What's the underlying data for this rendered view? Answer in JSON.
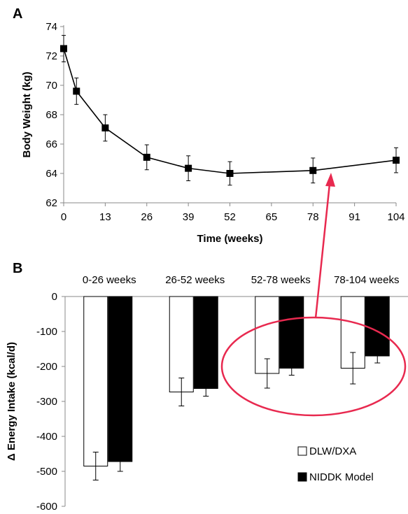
{
  "chart_data": [
    {
      "panel_label": "A",
      "type": "line",
      "xlabel": "Time (weeks)",
      "ylabel": "Body Weight (kg)",
      "x_ticks": [
        "0",
        "13",
        "26",
        "39",
        "52",
        "65",
        "78",
        "91",
        "104"
      ],
      "y_ticks": [
        "62",
        "64",
        "66",
        "68",
        "70",
        "72",
        "74"
      ],
      "xlim": [
        0,
        104
      ],
      "ylim": [
        62,
        74
      ],
      "grid": false,
      "series": [
        {
          "x": [
            0,
            4,
            13,
            26,
            39,
            52,
            78,
            104
          ],
          "y": [
            72.5,
            69.6,
            67.1,
            65.1,
            64.35,
            64.0,
            64.2,
            64.9
          ],
          "error": [
            0.9,
            0.9,
            0.9,
            0.85,
            0.85,
            0.8,
            0.85,
            0.85
          ]
        }
      ]
    },
    {
      "panel_label": "B",
      "type": "bar",
      "categories": [
        "0-26 weeks",
        "26-52 weeks",
        "52-78 weeks",
        "78-104 weeks"
      ],
      "ylabel": "Δ Energy Intake (kcal/d)",
      "y_ticks": [
        "0",
        "-100",
        "-200",
        "-300",
        "-400",
        "-500",
        "-600"
      ],
      "ylim": [
        -600,
        0
      ],
      "grid": false,
      "legend_position": "bottom-right",
      "series": [
        {
          "name": "DLW/DXA",
          "color": "#ffffff",
          "values": [
            -485,
            -273,
            -220,
            -205
          ],
          "error": [
            40,
            40,
            42,
            45
          ]
        },
        {
          "name": "NIDDK Model",
          "color": "#000000",
          "values": [
            -472,
            -263,
            -205,
            -170
          ],
          "error": [
            28,
            22,
            20,
            20
          ]
        }
      ],
      "annotation": {
        "type": "ellipse-with-arrow",
        "color": "#e8294f"
      }
    }
  ]
}
